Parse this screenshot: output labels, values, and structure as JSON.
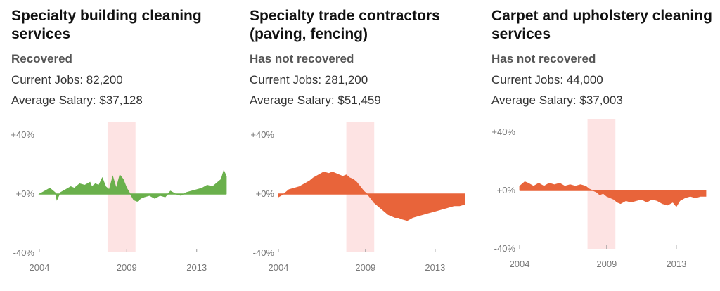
{
  "colors": {
    "recovered": "#6ab04c",
    "not_recovered": "#e8643a",
    "recession": "#fde3e3"
  },
  "chart_data": [
    {
      "type": "area",
      "title": "Specialty building cleaning services",
      "status": "Recovered",
      "jobs_label": "Current Jobs: 82,200",
      "salary_label": "Average Salary: $37,128",
      "ylim": [
        -40,
        40
      ],
      "yticks": [
        "+40%",
        "+0%",
        "-40%"
      ],
      "xlim": [
        2004,
        2014.7
      ],
      "xticks": [
        "2004",
        "2009",
        "2013"
      ],
      "recession": [
        2007.9,
        2009.5
      ],
      "color_key": "recovered",
      "x": [
        2004.0,
        2004.3,
        2004.6,
        2004.9,
        2005.0,
        2005.2,
        2005.5,
        2005.8,
        2006.0,
        2006.3,
        2006.6,
        2006.9,
        2007.0,
        2007.2,
        2007.4,
        2007.6,
        2007.8,
        2008.0,
        2008.2,
        2008.4,
        2008.6,
        2008.8,
        2009.0,
        2009.2,
        2009.4,
        2009.6,
        2009.8,
        2010.0,
        2010.3,
        2010.6,
        2010.9,
        2011.2,
        2011.5,
        2011.8,
        2012.1,
        2012.4,
        2012.7,
        2013.0,
        2013.3,
        2013.6,
        2013.9,
        2014.2,
        2014.4,
        2014.55,
        2014.7
      ],
      "values": [
        0,
        2,
        4,
        1,
        -4,
        1,
        3,
        5,
        4,
        7,
        6,
        8,
        5,
        7,
        6,
        11,
        5,
        3,
        12,
        4,
        13,
        10,
        4,
        0,
        -4,
        -5,
        -3,
        -2,
        -1,
        -3,
        -1,
        -2,
        2,
        0,
        -1,
        1,
        2,
        3,
        4,
        6,
        5,
        8,
        10,
        16,
        12
      ]
    },
    {
      "type": "area",
      "title": "Specialty trade contractors (paving, fencing)",
      "status": "Has not recovered",
      "jobs_label": "Current Jobs: 281,200",
      "salary_label": "Average Salary: $51,459",
      "ylim": [
        -40,
        40
      ],
      "yticks": [
        "+40%",
        "+0%",
        "-40%"
      ],
      "xlim": [
        2004,
        2014.7
      ],
      "xticks": [
        "2004",
        "2009",
        "2013"
      ],
      "recession": [
        2007.9,
        2009.5
      ],
      "color_key": "not_recovered",
      "x": [
        2004.0,
        2004.3,
        2004.6,
        2004.9,
        2005.2,
        2005.5,
        2005.8,
        2006.0,
        2006.3,
        2006.6,
        2006.9,
        2007.1,
        2007.3,
        2007.5,
        2007.7,
        2007.9,
        2008.1,
        2008.3,
        2008.5,
        2008.7,
        2008.9,
        2009.1,
        2009.3,
        2009.5,
        2009.7,
        2009.9,
        2010.1,
        2010.3,
        2010.5,
        2010.7,
        2010.9,
        2011.1,
        2011.4,
        2011.7,
        2012.0,
        2012.3,
        2012.6,
        2012.9,
        2013.2,
        2013.5,
        2013.8,
        2014.1,
        2014.4,
        2014.7
      ],
      "values": [
        -2,
        0,
        3,
        4,
        5,
        7,
        9,
        11,
        13,
        15,
        14,
        15,
        14,
        13,
        12,
        13,
        11,
        10,
        8,
        5,
        2,
        0,
        -3,
        -6,
        -8,
        -10,
        -12,
        -14,
        -15,
        -16,
        -16,
        -17,
        -18,
        -16,
        -15,
        -14,
        -13,
        -12,
        -11,
        -10,
        -9,
        -8,
        -8,
        -7
      ]
    },
    {
      "type": "area",
      "title": "Carpet and upholstery cleaning services",
      "status": "Has not recovered",
      "jobs_label": "Current Jobs: 44,000",
      "salary_label": "Average Salary: $37,003",
      "ylim": [
        -40,
        40
      ],
      "yticks": [
        "+40%",
        "+0%",
        "-40%"
      ],
      "xlim": [
        2004,
        2014.7
      ],
      "xticks": [
        "2004",
        "2009",
        "2013"
      ],
      "recession": [
        2007.9,
        2009.5
      ],
      "color_key": "not_recovered",
      "x": [
        2004.0,
        2004.3,
        2004.5,
        2004.8,
        2005.1,
        2005.4,
        2005.7,
        2006.0,
        2006.3,
        2006.6,
        2006.9,
        2007.2,
        2007.5,
        2007.8,
        2008.0,
        2008.2,
        2008.4,
        2008.6,
        2008.8,
        2009.0,
        2009.2,
        2009.4,
        2009.6,
        2009.8,
        2010.1,
        2010.4,
        2010.7,
        2011.0,
        2011.3,
        2011.6,
        2011.9,
        2012.2,
        2012.5,
        2012.8,
        2013.0,
        2013.2,
        2013.5,
        2013.8,
        2014.1,
        2014.4,
        2014.7
      ],
      "values": [
        3,
        6,
        5,
        3,
        5,
        3,
        5,
        4,
        5,
        3,
        4,
        3,
        4,
        3,
        1,
        0,
        -1,
        -3,
        -2,
        -4,
        -5,
        -6,
        -8,
        -9,
        -7,
        -8,
        -7,
        -6,
        -8,
        -6,
        -7,
        -9,
        -10,
        -8,
        -11,
        -7,
        -5,
        -4,
        -5,
        -4,
        -4
      ]
    }
  ]
}
